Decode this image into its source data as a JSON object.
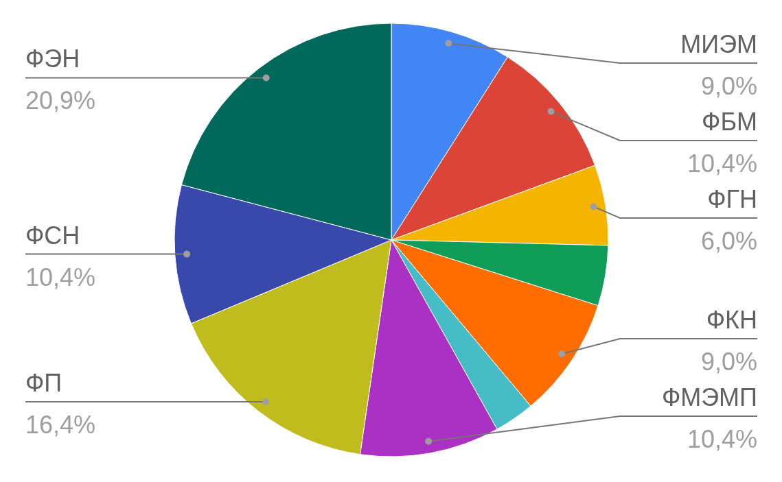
{
  "chart_data": {
    "type": "pie",
    "categories": [
      "МИЭМ",
      "ФБМ",
      "ФГН",
      null,
      "ФКН",
      null,
      "ФМЭМП",
      "ФП",
      "ФСН",
      "ФЭН"
    ],
    "values": [
      9.0,
      10.4,
      6.0,
      4.5,
      9.0,
      3.0,
      10.4,
      16.4,
      10.4,
      20.9
    ],
    "colors": [
      "#4285f4",
      "#db4437",
      "#f4b400",
      "#0f9d58",
      "#ff6d00",
      "#46bdc6",
      "#ab30c4",
      "#c0bc1e",
      "#3949ab",
      "#00695c"
    ],
    "value_labels": [
      "9,0%",
      "10,4%",
      "6,0%",
      null,
      "9,0%",
      null,
      "10,4%",
      "16,4%",
      "10,4%",
      "20,9%"
    ]
  }
}
